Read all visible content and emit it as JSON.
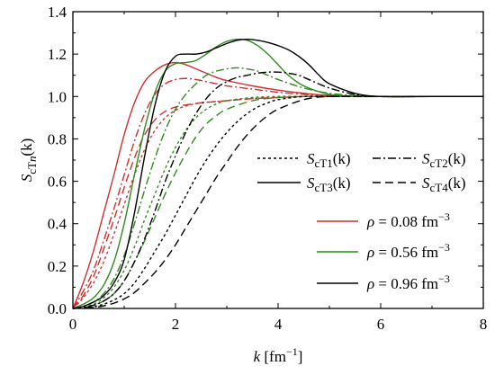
{
  "chart_data": {
    "type": "line",
    "xlabel": {
      "var": "k",
      "unit": " [fm",
      "sup": "−1",
      "close": "]"
    },
    "ylabel": {
      "main": "S",
      "sub": "cT",
      "subvar": "n",
      "arg": "(k)"
    },
    "xlim": [
      0,
      8
    ],
    "ylim": [
      0,
      1.4
    ],
    "xticks": [
      "0",
      "2",
      "4",
      "6",
      "8"
    ],
    "yticks": [
      "0.0",
      "0.2",
      "0.4",
      "0.6",
      "0.8",
      "1.0",
      "1.2",
      "1.4"
    ],
    "grid": false,
    "style_legend": [
      {
        "main": "S",
        "sub": "cT1",
        "arg": "(k)",
        "dash": "3,3"
      },
      {
        "main": "S",
        "sub": "cT2",
        "arg": "(k)",
        "dash": "9,3,2,3"
      },
      {
        "main": "S",
        "sub": "cT3",
        "arg": "(k)",
        "dash": ""
      },
      {
        "main": "S",
        "sub": "cT4",
        "arg": "(k)",
        "dash": "9,5"
      }
    ],
    "color_legend": [
      {
        "sym": "ρ",
        "value": " = 0.08 fm",
        "sup": "−3",
        "color": "#d32f2f"
      },
      {
        "sym": "ρ",
        "value": " = 0.56 fm",
        "sup": "−3",
        "color": "#2e8b1e"
      },
      {
        "sym": "ρ",
        "value": " = 0.96 fm",
        "sup": "−3",
        "color": "#000000"
      }
    ],
    "series": [
      {
        "color": "#d32f2f",
        "style": "cT3",
        "x": [
          0,
          0.2,
          0.4,
          0.6,
          0.8,
          1.0,
          1.2,
          1.4,
          1.6,
          1.8,
          2.0,
          2.2,
          2.4,
          2.6,
          2.8,
          3.0,
          3.5,
          4.0,
          4.5,
          5.0,
          6.0,
          7.0,
          8.0
        ],
        "y": [
          0,
          0.12,
          0.27,
          0.45,
          0.63,
          0.82,
          0.97,
          1.07,
          1.12,
          1.15,
          1.16,
          1.15,
          1.13,
          1.11,
          1.09,
          1.075,
          1.05,
          1.03,
          1.015,
          1.005,
          1.0,
          1.0,
          1.0
        ]
      },
      {
        "color": "#d32f2f",
        "style": "cT2",
        "x": [
          0,
          0.2,
          0.4,
          0.6,
          0.8,
          1.0,
          1.2,
          1.4,
          1.6,
          1.8,
          2.0,
          2.2,
          2.4,
          2.6,
          2.8,
          3.0,
          3.5,
          4.0,
          4.5,
          5.0,
          6.0,
          7.0,
          8.0
        ],
        "y": [
          0,
          0.08,
          0.18,
          0.32,
          0.47,
          0.63,
          0.79,
          0.92,
          1.01,
          1.06,
          1.08,
          1.085,
          1.08,
          1.07,
          1.06,
          1.05,
          1.035,
          1.02,
          1.01,
          1.005,
          1.0,
          1.0,
          1.0
        ]
      },
      {
        "color": "#d32f2f",
        "style": "cT4",
        "x": [
          0,
          0.2,
          0.4,
          0.6,
          0.8,
          1.0,
          1.2,
          1.4,
          1.6,
          1.8,
          2.0,
          2.2,
          2.5,
          3.0,
          3.5,
          4.0,
          4.5,
          5.0,
          6.0,
          7.0,
          8.0
        ],
        "y": [
          0,
          0.06,
          0.15,
          0.28,
          0.42,
          0.57,
          0.71,
          0.82,
          0.89,
          0.93,
          0.95,
          0.96,
          0.97,
          0.98,
          0.99,
          0.995,
          1.0,
          1.0,
          1.0,
          1.0,
          1.0
        ]
      },
      {
        "color": "#d32f2f",
        "style": "cT1",
        "x": [
          0,
          0.2,
          0.4,
          0.6,
          0.8,
          1.0,
          1.2,
          1.4,
          1.6,
          1.8,
          2.0,
          2.2,
          2.5,
          3.0,
          3.5,
          4.0,
          4.5,
          5.0,
          6.0,
          7.0,
          8.0
        ],
        "y": [
          0,
          0.05,
          0.12,
          0.22,
          0.35,
          0.49,
          0.63,
          0.75,
          0.84,
          0.9,
          0.935,
          0.955,
          0.97,
          0.98,
          0.99,
          0.995,
          1.0,
          1.0,
          1.0,
          1.0,
          1.0
        ]
      },
      {
        "color": "#2e8b1e",
        "style": "cT3",
        "x": [
          0,
          0.2,
          0.4,
          0.6,
          0.8,
          1.0,
          1.2,
          1.4,
          1.6,
          1.8,
          2.0,
          2.2,
          2.4,
          2.6,
          2.8,
          3.0,
          3.2,
          3.4,
          3.6,
          3.8,
          4.0,
          4.2,
          4.5,
          5.0,
          5.5,
          6.0,
          7.0,
          8.0
        ],
        "y": [
          0,
          0.02,
          0.05,
          0.11,
          0.22,
          0.4,
          0.63,
          0.85,
          1.02,
          1.12,
          1.155,
          1.16,
          1.17,
          1.2,
          1.235,
          1.26,
          1.27,
          1.265,
          1.24,
          1.2,
          1.15,
          1.1,
          1.05,
          1.01,
          1.0,
          1.0,
          1.0,
          1.0
        ]
      },
      {
        "color": "#2e8b1e",
        "style": "cT2",
        "x": [
          0,
          0.2,
          0.4,
          0.6,
          0.8,
          1.0,
          1.2,
          1.4,
          1.6,
          1.8,
          2.0,
          2.2,
          2.4,
          2.6,
          2.8,
          3.0,
          3.2,
          3.4,
          3.6,
          3.8,
          4.0,
          4.5,
          5.0,
          5.5,
          6.0,
          7.0,
          8.0
        ],
        "y": [
          0,
          0.01,
          0.03,
          0.07,
          0.14,
          0.25,
          0.4,
          0.56,
          0.71,
          0.84,
          0.94,
          1.01,
          1.06,
          1.1,
          1.12,
          1.13,
          1.135,
          1.13,
          1.12,
          1.1,
          1.08,
          1.04,
          1.015,
          1.005,
          1.0,
          1.0,
          1.0
        ]
      },
      {
        "color": "#2e8b1e",
        "style": "cT1",
        "x": [
          0,
          0.2,
          0.4,
          0.6,
          0.8,
          1.0,
          1.2,
          1.4,
          1.6,
          1.8,
          2.0,
          2.2,
          2.4,
          2.6,
          2.8,
          3.0,
          3.5,
          4.0,
          4.5,
          5.0,
          6.0,
          7.0,
          8.0
        ],
        "y": [
          0,
          0.01,
          0.02,
          0.05,
          0.1,
          0.18,
          0.29,
          0.42,
          0.54,
          0.66,
          0.76,
          0.84,
          0.9,
          0.94,
          0.965,
          0.98,
          0.995,
          1.0,
          1.0,
          1.0,
          1.0,
          1.0,
          1.0
        ]
      },
      {
        "color": "#2e8b1e",
        "style": "cT4",
        "x": [
          0,
          0.2,
          0.4,
          0.6,
          0.8,
          1.0,
          1.2,
          1.4,
          1.6,
          1.8,
          2.0,
          2.2,
          2.4,
          2.6,
          2.8,
          3.0,
          3.5,
          4.0,
          4.5,
          5.0,
          6.0,
          7.0,
          8.0
        ],
        "y": [
          0,
          0.005,
          0.015,
          0.035,
          0.07,
          0.13,
          0.22,
          0.32,
          0.43,
          0.54,
          0.64,
          0.73,
          0.81,
          0.87,
          0.91,
          0.94,
          0.98,
          0.995,
          1.0,
          1.0,
          1.0,
          1.0,
          1.0
        ]
      },
      {
        "color": "#000000",
        "style": "cT3",
        "x": [
          0,
          0.2,
          0.4,
          0.6,
          0.8,
          1.0,
          1.2,
          1.4,
          1.6,
          1.8,
          2.0,
          2.2,
          2.4,
          2.6,
          2.8,
          3.0,
          3.2,
          3.4,
          3.6,
          3.8,
          4.0,
          4.2,
          4.4,
          4.6,
          4.8,
          5.0,
          5.5,
          6.0,
          7.0,
          8.0
        ],
        "y": [
          0,
          0.01,
          0.03,
          0.06,
          0.12,
          0.23,
          0.45,
          0.72,
          0.96,
          1.12,
          1.19,
          1.2,
          1.2,
          1.21,
          1.23,
          1.25,
          1.265,
          1.27,
          1.265,
          1.255,
          1.24,
          1.22,
          1.19,
          1.15,
          1.1,
          1.06,
          1.015,
          1.0,
          1.0,
          1.0
        ]
      },
      {
        "color": "#000000",
        "style": "cT2",
        "x": [
          0,
          0.2,
          0.4,
          0.6,
          0.8,
          1.0,
          1.2,
          1.4,
          1.6,
          1.8,
          2.0,
          2.2,
          2.4,
          2.6,
          2.8,
          3.0,
          3.2,
          3.4,
          3.6,
          3.8,
          4.0,
          4.2,
          4.4,
          4.6,
          5.0,
          5.5,
          6.0,
          7.0,
          8.0
        ],
        "y": [
          0,
          0.005,
          0.015,
          0.035,
          0.07,
          0.13,
          0.22,
          0.33,
          0.46,
          0.6,
          0.72,
          0.83,
          0.92,
          0.99,
          1.04,
          1.07,
          1.09,
          1.1,
          1.11,
          1.115,
          1.115,
          1.11,
          1.1,
          1.08,
          1.04,
          1.01,
          1.0,
          1.0,
          1.0
        ]
      },
      {
        "color": "#000000",
        "style": "cT1",
        "x": [
          0,
          0.2,
          0.4,
          0.6,
          0.8,
          1.0,
          1.2,
          1.4,
          1.6,
          1.8,
          2.0,
          2.2,
          2.4,
          2.6,
          2.8,
          3.0,
          3.2,
          3.4,
          3.6,
          3.8,
          4.0,
          4.5,
          5.0,
          6.0,
          7.0,
          8.0
        ],
        "y": [
          0,
          0.003,
          0.008,
          0.02,
          0.04,
          0.07,
          0.12,
          0.19,
          0.27,
          0.35,
          0.44,
          0.53,
          0.62,
          0.7,
          0.77,
          0.83,
          0.88,
          0.92,
          0.95,
          0.97,
          0.985,
          1.0,
          1.0,
          1.0,
          1.0,
          1.0
        ]
      },
      {
        "color": "#000000",
        "style": "cT4",
        "x": [
          0,
          0.2,
          0.4,
          0.6,
          0.8,
          1.0,
          1.2,
          1.4,
          1.6,
          1.8,
          2.0,
          2.2,
          2.4,
          2.6,
          2.8,
          3.0,
          3.2,
          3.4,
          3.6,
          3.8,
          4.0,
          4.5,
          5.0,
          6.0,
          7.0,
          8.0
        ],
        "y": [
          0,
          0.002,
          0.005,
          0.012,
          0.025,
          0.045,
          0.075,
          0.12,
          0.17,
          0.23,
          0.3,
          0.38,
          0.46,
          0.54,
          0.62,
          0.69,
          0.76,
          0.82,
          0.87,
          0.91,
          0.94,
          0.985,
          1.0,
          1.0,
          1.0,
          1.0
        ]
      }
    ]
  }
}
